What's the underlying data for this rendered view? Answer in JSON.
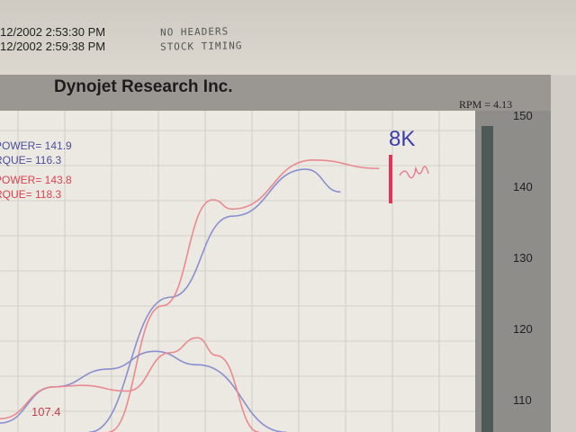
{
  "header": {
    "timestamps": [
      "12/2002 2:53:30 PM",
      "12/2002 2:59:38 PM"
    ],
    "handwritten_note": [
      "NO HEADERS",
      "STOCK TIMING"
    ],
    "brand": "Dynojet Research Inc.",
    "rpm_label": "RPM = 4.13"
  },
  "legend": [
    {
      "text": "POWER= 141.9",
      "color": "#4a4f9a"
    },
    {
      "text": "RQUE= 116.3",
      "color": "#4a4f9a"
    },
    {
      "text": "POWER= 143.8",
      "color": "#d9434f"
    },
    {
      "text": "RQUE= 118.3",
      "color": "#d9434f"
    }
  ],
  "annotations": {
    "handwritten_mark": "8K",
    "point_label": "107.4"
  },
  "chart_data": {
    "type": "line",
    "ylim": [
      105,
      150
    ],
    "yticks": [
      110,
      120,
      130,
      140,
      150
    ],
    "grid": true,
    "series": [
      {
        "color": "#8a8fd0",
        "x": [
          23,
          44,
          60,
          79,
          88
        ],
        "values": [
          105.4,
          124.4,
          135.8,
          142.4,
          139.2
        ]
      },
      {
        "color": "#e98a90",
        "x": [
          28,
          42,
          55,
          60,
          81,
          98
        ],
        "values": [
          105.4,
          123.2,
          138.1,
          136.8,
          143.7,
          142.5
        ]
      },
      {
        "color": "#8a8fd0",
        "x": [
          0,
          14,
          28,
          40,
          51,
          74
        ],
        "values": [
          106.7,
          111.8,
          114.3,
          116.8,
          114.9,
          105.4
        ]
      },
      {
        "color": "#e98a90",
        "x": [
          0,
          14,
          21,
          33,
          44,
          51,
          56,
          67
        ],
        "values": [
          107.3,
          111.8,
          112.0,
          111.2,
          116.6,
          118.7,
          116.2,
          105.4
        ]
      }
    ]
  }
}
